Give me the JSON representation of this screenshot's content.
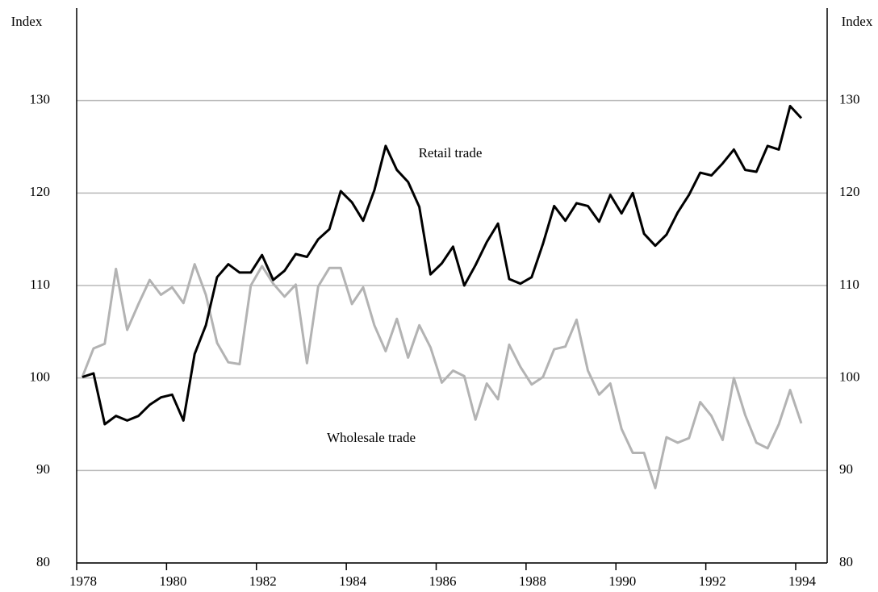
{
  "chart_data": {
    "type": "line",
    "y_label": "Index",
    "x": [
      1978.125,
      1978.375,
      1978.625,
      1978.875,
      1979.125,
      1979.375,
      1979.625,
      1979.875,
      1980.125,
      1980.375,
      1980.625,
      1980.875,
      1981.125,
      1981.375,
      1981.625,
      1981.875,
      1982.125,
      1982.375,
      1982.625,
      1982.875,
      1983.125,
      1983.375,
      1983.625,
      1983.875,
      1984.125,
      1984.375,
      1984.625,
      1984.875,
      1985.125,
      1985.375,
      1985.625,
      1985.875,
      1986.125,
      1986.375,
      1986.625,
      1986.875,
      1987.125,
      1987.375,
      1987.625,
      1987.875,
      1988.125,
      1988.375,
      1988.625,
      1988.875,
      1989.125,
      1989.375,
      1989.625,
      1989.875,
      1990.125,
      1990.375,
      1990.625,
      1990.875,
      1991.125,
      1991.375,
      1991.625,
      1991.875,
      1992.125,
      1992.375,
      1992.625,
      1992.875,
      1993.125,
      1993.375,
      1993.625,
      1993.875,
      1994.125
    ],
    "series": [
      {
        "name": "Retail trade",
        "color": "#000000",
        "width": 3,
        "values": [
          100.1,
          100.5,
          95.0,
          95.9,
          95.4,
          95.9,
          97.1,
          97.9,
          98.2,
          95.4,
          102.6,
          105.7,
          110.9,
          112.3,
          111.4,
          111.4,
          113.3,
          110.6,
          111.6,
          113.4,
          113.1,
          115.0,
          116.1,
          120.2,
          119.0,
          117.0,
          120.3,
          125.1,
          122.5,
          121.2,
          118.5,
          111.2,
          112.4,
          114.2,
          110.0,
          112.2,
          114.7,
          116.7,
          110.7,
          110.2,
          110.9,
          114.5,
          118.6,
          117.0,
          118.9,
          118.6,
          116.9,
          119.8,
          117.8,
          120.0,
          115.6,
          114.3,
          115.5,
          117.9,
          119.8,
          122.2,
          121.9,
          123.2,
          124.7,
          122.5,
          122.3,
          125.1,
          124.7,
          129.4,
          128.1
        ]
      },
      {
        "name": "Wholesale trade",
        "color": "#b3b3b3",
        "width": 3,
        "values": [
          100.1,
          103.2,
          103.7,
          111.8,
          105.2,
          108.0,
          110.6,
          109.0,
          109.8,
          108.1,
          112.3,
          109.0,
          103.8,
          101.7,
          101.5,
          110.0,
          112.1,
          110.2,
          108.8,
          110.1,
          101.6,
          109.9,
          111.9,
          111.9,
          108.0,
          109.8,
          105.7,
          102.9,
          106.4,
          102.2,
          105.7,
          103.3,
          99.5,
          100.8,
          100.2,
          95.5,
          99.4,
          97.7,
          103.6,
          101.2,
          99.3,
          100.1,
          103.1,
          103.4,
          106.3,
          100.8,
          98.2,
          99.4,
          94.5,
          91.9,
          91.9,
          88.1,
          93.6,
          93.0,
          93.5,
          97.4,
          95.9,
          93.3,
          100.0,
          96.0,
          93.0,
          92.4,
          95.0,
          98.7,
          95.1
        ]
      }
    ],
    "xlim": [
      1978,
      1994.7
    ],
    "xticks": [
      1978,
      1980,
      1982,
      1984,
      1986,
      1988,
      1990,
      1992,
      1994
    ],
    "ylim": [
      80,
      140
    ],
    "yticks": [
      80,
      90,
      100,
      110,
      120,
      130
    ],
    "grid": true,
    "grid_color": "#b8b8b8"
  }
}
